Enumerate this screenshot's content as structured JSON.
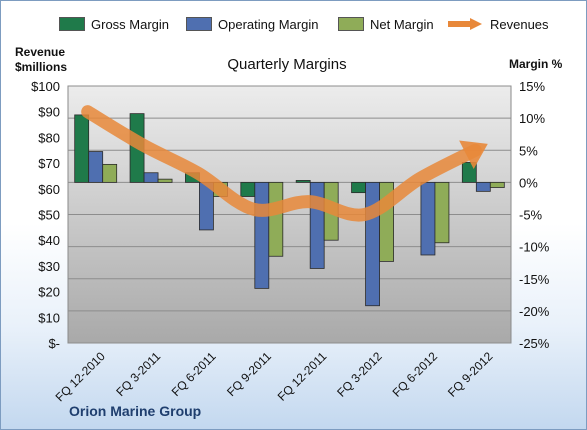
{
  "chart_data": {
    "type": "bar",
    "title": "Quarterly Margins",
    "ylabel_left": "Revenue\n$millions",
    "ylabel_right": "Margin %",
    "categories": [
      "FQ 12-2010",
      "FQ 3-2011",
      "FQ 6-2011",
      "FQ 9-2011",
      "FQ 12-2011",
      "FQ 3-2012",
      "FQ 6-2012",
      "FQ 9-2012"
    ],
    "series": [
      {
        "name": "Gross Margin",
        "axis": "right",
        "kind": "bar",
        "color": "#1f7a4a",
        "values": [
          10.5,
          10.7,
          1.5,
          -2.2,
          0.3,
          -1.6,
          0,
          3.1
        ]
      },
      {
        "name": "Operating Margin",
        "axis": "right",
        "kind": "bar",
        "color": "#4f6fb0",
        "values": [
          4.8,
          1.5,
          -7.4,
          -16.5,
          -13.4,
          -19.2,
          -11.3,
          -1.4
        ]
      },
      {
        "name": "Net Margin",
        "axis": "right",
        "kind": "bar",
        "color": "#8fac58",
        "values": [
          2.8,
          0.5,
          -2.2,
          -11.5,
          -9.0,
          -12.3,
          -9.4,
          -0.8
        ]
      },
      {
        "name": "Revenues",
        "axis": "left",
        "kind": "line",
        "color": "#e8883a",
        "values": [
          90,
          77,
          66,
          52,
          55,
          50,
          64,
          75
        ]
      }
    ],
    "ylim_left": [
      0,
      100
    ],
    "yticks_left": [
      "$-",
      "$10",
      "$20",
      "$30",
      "$40",
      "$50",
      "$60",
      "$70",
      "$80",
      "$90",
      "$100"
    ],
    "ylim_right": [
      -25,
      15
    ],
    "yticks_right": [
      "-25%",
      "-20%",
      "-15%",
      "-10%",
      "-5%",
      "0%",
      "5%",
      "10%",
      "15%"
    ],
    "legend_position": "top",
    "grid": true
  },
  "legend": {
    "gross": "Gross Margin",
    "operating": "Operating Margin",
    "net": "Net Margin",
    "revenues": "Revenues"
  },
  "company": "Orion Marine Group"
}
